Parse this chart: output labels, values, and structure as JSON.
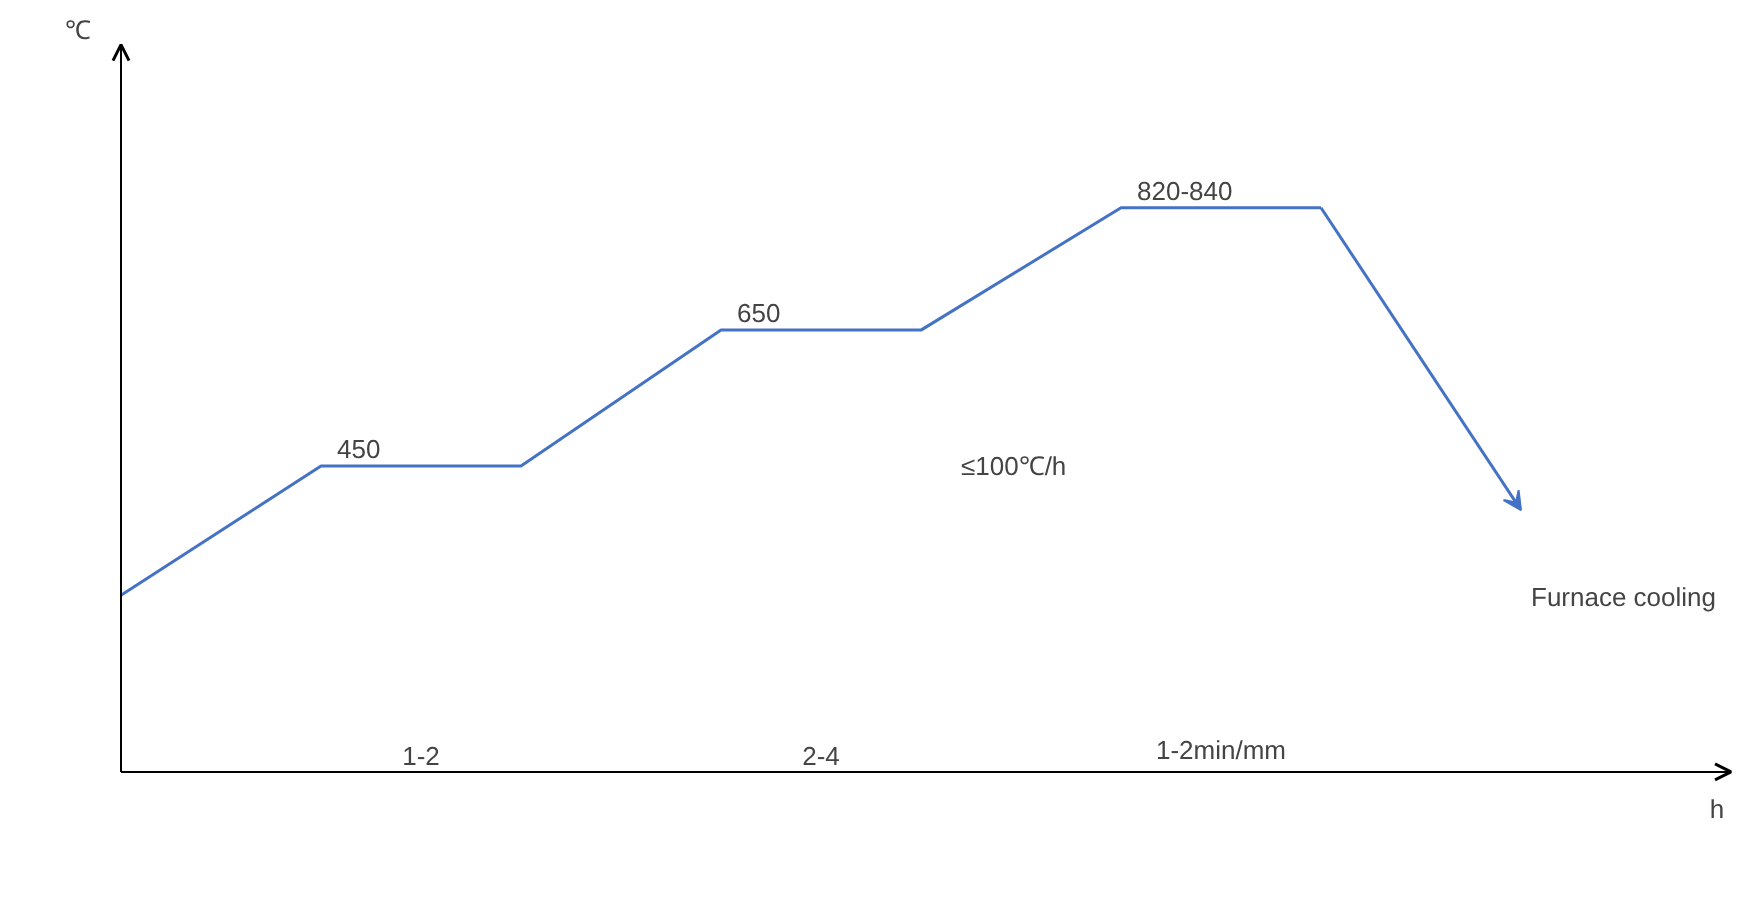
{
  "chart_data": {
    "type": "line",
    "xlabel": "h",
    "ylim": [
      0,
      1070
    ],
    "categories": [
      null,
      null,
      null,
      null,
      null,
      null,
      null,
      null
    ],
    "series": [
      {
        "color": "#4472c4",
        "values": [
          260,
          450,
          450,
          650,
          650,
          830,
          830,
          null
        ],
        "value_labels": [
          null,
          "450",
          null,
          "650",
          null,
          "820-840",
          null,
          null
        ]
      }
    ],
    "annotations": [
      "℃",
      "1-2",
      "2-4",
      "1-2min/mm",
      "≤100℃/h",
      "Furnace cooling"
    ],
    "grid": false,
    "marker": "none",
    "line_style": "solid",
    "tick_labels": false
  }
}
